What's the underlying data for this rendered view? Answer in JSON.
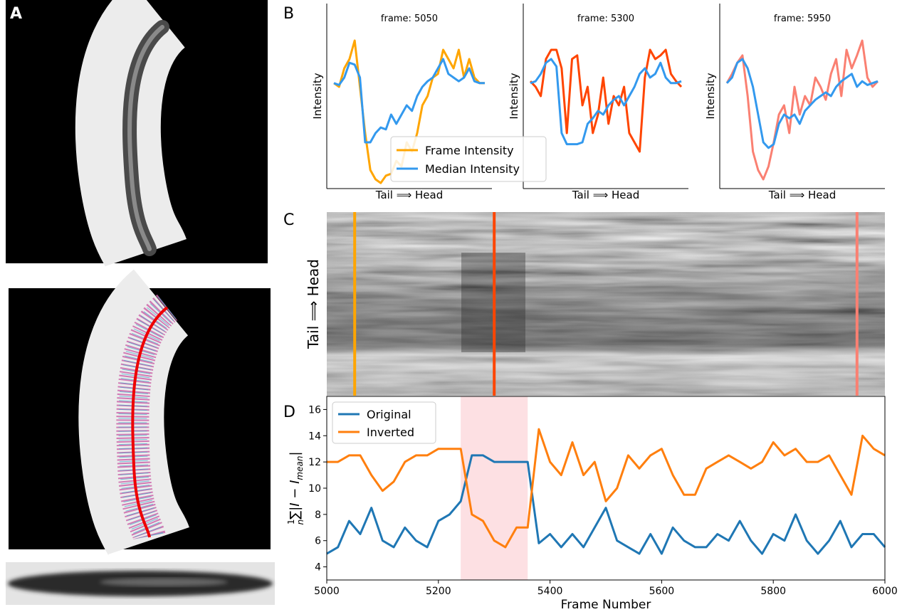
{
  "panel_labels": [
    "A",
    "B",
    "C",
    "D"
  ],
  "chart_data": [
    {
      "type": "line",
      "title": "frame: 5050",
      "xlabel": "Tail ⟹ Head",
      "ylabel": "Intensity",
      "ylim": [
        0,
        100
      ],
      "legend": "lower-center",
      "series": [
        {
          "name": "Frame Intensity",
          "color": "#ffa500",
          "values": [
            57,
            55,
            65,
            70,
            80,
            55,
            30,
            10,
            5,
            3,
            7,
            8,
            15,
            12,
            25,
            20,
            30,
            45,
            50,
            60,
            62,
            75,
            70,
            65,
            75,
            60,
            70,
            60,
            57,
            57
          ]
        },
        {
          "name": "Median Intensity",
          "color": "#3399ee",
          "values": [
            57,
            56,
            60,
            68,
            67,
            60,
            25,
            25,
            30,
            33,
            32,
            40,
            35,
            40,
            45,
            42,
            50,
            55,
            58,
            60,
            65,
            70,
            62,
            60,
            58,
            60,
            65,
            58,
            57,
            57
          ]
        }
      ]
    },
    {
      "type": "line",
      "title": "frame: 5300",
      "xlabel": "Tail ⟹ Head",
      "ylabel": "Intensity",
      "ylim": [
        0,
        100
      ],
      "series": [
        {
          "color": "#ff4500",
          "values": [
            58,
            55,
            50,
            70,
            75,
            75,
            65,
            30,
            70,
            72,
            45,
            55,
            30,
            40,
            60,
            35,
            50,
            45,
            55,
            30,
            25,
            20,
            60,
            75,
            70,
            72,
            75,
            62,
            58,
            55
          ]
        },
        {
          "color": "#3399ee",
          "values": [
            57,
            58,
            62,
            68,
            70,
            66,
            30,
            24,
            24,
            24,
            25,
            35,
            38,
            42,
            40,
            45,
            48,
            50,
            45,
            50,
            55,
            62,
            65,
            60,
            62,
            68,
            60,
            57,
            57,
            58
          ]
        }
      ]
    },
    {
      "type": "line",
      "title": "frame: 5950",
      "xlabel": "Tail ⟹ Head",
      "ylabel": "Intensity",
      "ylim": [
        0,
        100
      ],
      "series": [
        {
          "color": "#fa8072",
          "values": [
            57,
            62,
            68,
            72,
            50,
            20,
            10,
            5,
            12,
            25,
            40,
            45,
            30,
            55,
            40,
            50,
            45,
            60,
            55,
            48,
            62,
            70,
            50,
            75,
            65,
            72,
            80,
            60,
            55,
            58
          ]
        },
        {
          "color": "#3399ee",
          "values": [
            57,
            60,
            68,
            70,
            65,
            55,
            40,
            25,
            22,
            24,
            35,
            40,
            38,
            40,
            35,
            42,
            45,
            48,
            50,
            52,
            50,
            55,
            58,
            60,
            62,
            55,
            58,
            56,
            57,
            58
          ]
        }
      ]
    },
    {
      "type": "image",
      "ylabel": "Tail ⟹ Head",
      "xlim": [
        5000,
        6000
      ],
      "markers": {
        "x": [
          5050,
          5300,
          5950
        ],
        "colors": [
          "#ffa500",
          "#ff4500",
          "#fa8072"
        ]
      }
    },
    {
      "type": "line",
      "xlabel": "Frame Number",
      "ylabel": {
        "numerator": "1",
        "denominator": "n",
        "body": "∑|I − I",
        "subscript": "mean",
        "end": "|"
      },
      "xlim": [
        5000,
        6000
      ],
      "ylim": [
        3,
        17
      ],
      "xticks": [
        5000,
        5200,
        5400,
        5600,
        5800,
        6000
      ],
      "yticks": [
        4,
        6,
        8,
        10,
        12,
        14,
        16
      ],
      "highlight": {
        "range": [
          5240,
          5360
        ],
        "color": "#fde0e3"
      },
      "legend": "upper-left",
      "x": [
        5000,
        5020,
        5040,
        5060,
        5080,
        5100,
        5120,
        5140,
        5160,
        5180,
        5200,
        5220,
        5240,
        5260,
        5280,
        5300,
        5320,
        5340,
        5360,
        5380,
        5400,
        5420,
        5440,
        5460,
        5480,
        5500,
        5520,
        5540,
        5560,
        5580,
        5600,
        5620,
        5640,
        5660,
        5680,
        5700,
        5720,
        5740,
        5760,
        5780,
        5800,
        5820,
        5840,
        5860,
        5880,
        5900,
        5920,
        5940,
        5960,
        5980,
        6000
      ],
      "series": [
        {
          "name": "Original",
          "color": "#1f77b4",
          "values": [
            5,
            5.5,
            7.5,
            6.5,
            8.5,
            6,
            5.5,
            7,
            6,
            5.5,
            7.5,
            8,
            9,
            12.5,
            12.5,
            12,
            12,
            12,
            12,
            5.8,
            6.5,
            5.5,
            6.5,
            5.5,
            7,
            8.5,
            6,
            5.5,
            5,
            6.5,
            5,
            7,
            6,
            5.5,
            5.5,
            6.5,
            6,
            7.5,
            6,
            5,
            6.5,
            6,
            8,
            6,
            5,
            6,
            7.5,
            5.5,
            6.5,
            6.5,
            5.5
          ]
        },
        {
          "name": "Inverted",
          "color": "#ff7f0e",
          "values": [
            12,
            12,
            12.5,
            12.5,
            11,
            9.8,
            10.5,
            12,
            12.5,
            12.5,
            13,
            13,
            13,
            8,
            7.5,
            6,
            5.5,
            7,
            7,
            14.5,
            12,
            11,
            13.5,
            11,
            12,
            9,
            10,
            12.5,
            11.5,
            12.5,
            13,
            11,
            9.5,
            9.5,
            11.5,
            12,
            12.5,
            12,
            11.5,
            12,
            13.5,
            12.5,
            13,
            12,
            12,
            12.5,
            11,
            9.5,
            14,
            13,
            12.5
          ]
        }
      ]
    }
  ]
}
